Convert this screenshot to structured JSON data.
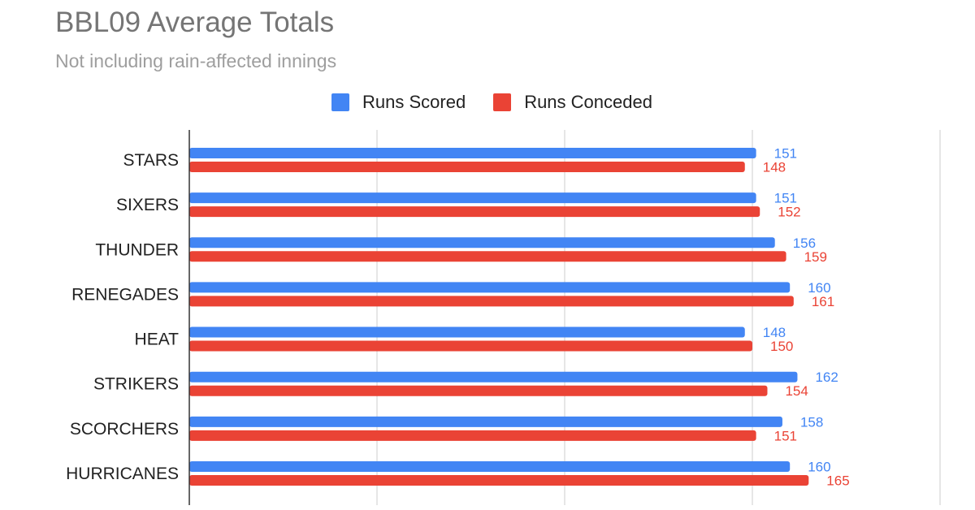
{
  "chart_data": {
    "type": "bar",
    "orientation": "horizontal",
    "title": "BBL09 Average Totals",
    "subtitle": "Not including rain-affected innings",
    "categories": [
      "STARS",
      "SIXERS",
      "THUNDER",
      "RENEGADES",
      "HEAT",
      "STRIKERS",
      "SCORCHERS",
      "HURRICANES"
    ],
    "series": [
      {
        "name": "Runs Scored",
        "color": "#4285f4",
        "values": [
          151,
          151,
          156,
          160,
          148,
          162,
          158,
          160
        ]
      },
      {
        "name": "Runs Conceded",
        "color": "#ea4335",
        "values": [
          148,
          152,
          159,
          161,
          150,
          154,
          151,
          165
        ]
      }
    ],
    "xlim": [
      0,
      200
    ],
    "grid": true,
    "legend_position": "top"
  }
}
